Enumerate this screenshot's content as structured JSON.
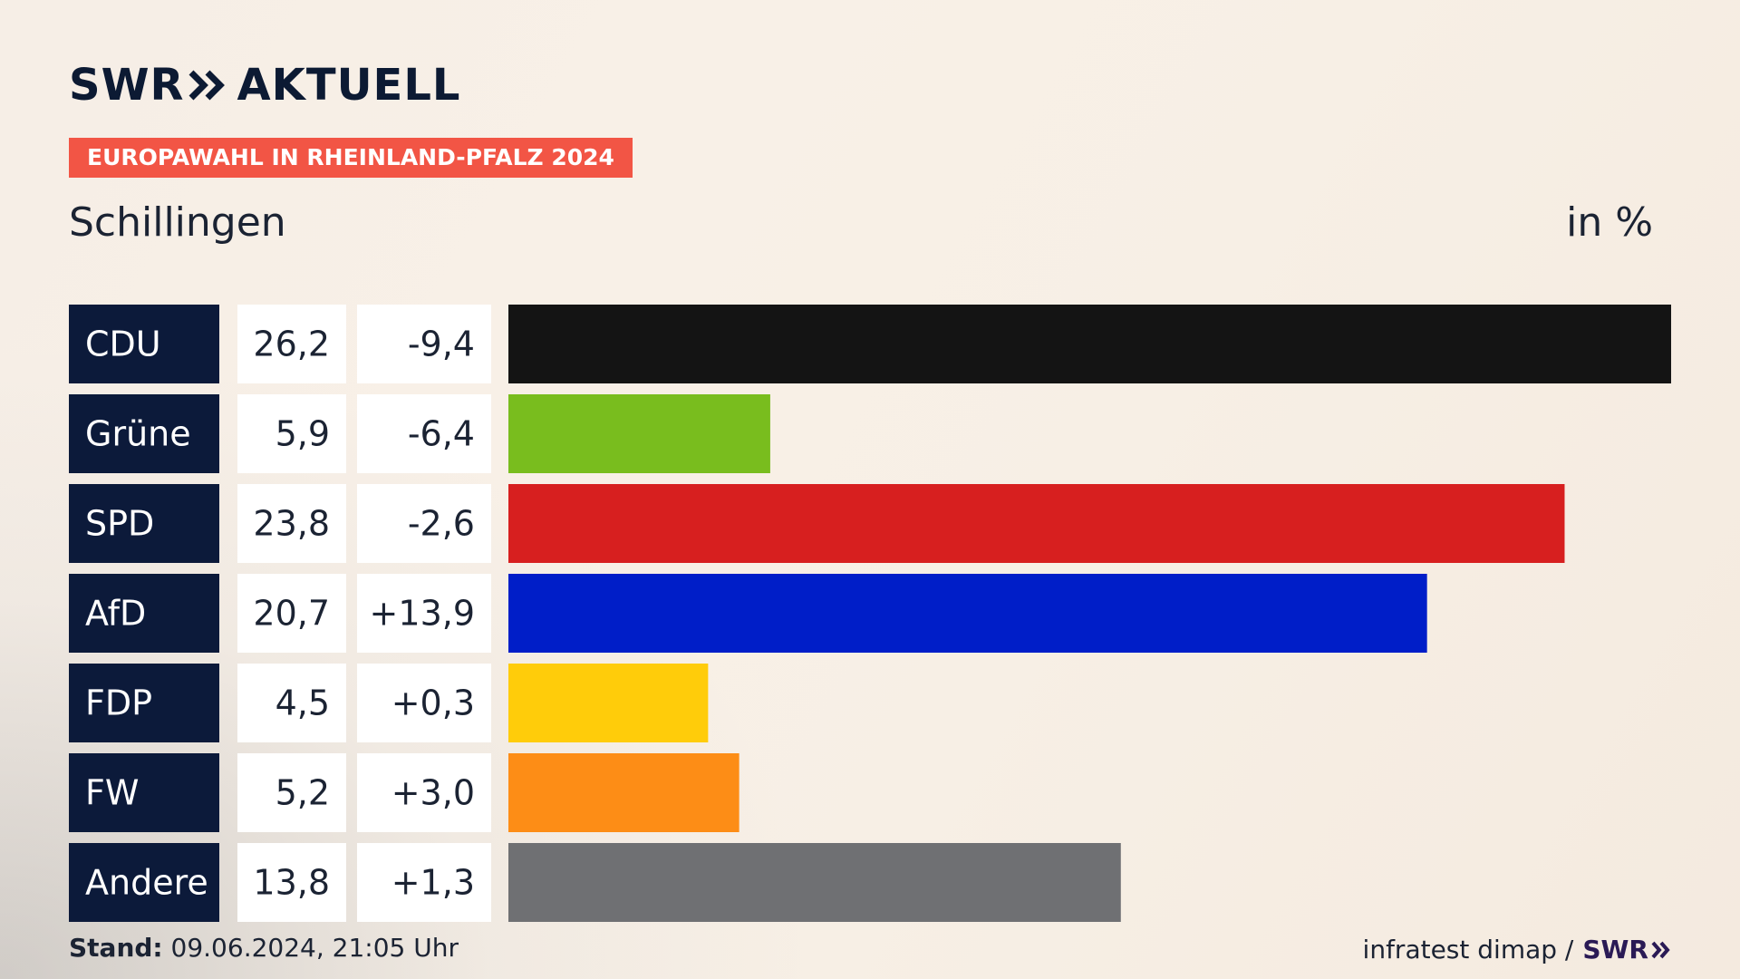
{
  "brand": {
    "name_left": "SWR",
    "name_right": "AKTUELL",
    "color": "#0c1a33"
  },
  "badge": {
    "text": "EUROPAWAHL IN RHEINLAND-PFALZ 2024",
    "color": "#f25545"
  },
  "header": {
    "place": "Schillingen",
    "unit": "in %"
  },
  "footer": {
    "stand_label": "Stand:",
    "stand_value": "09.06.2024, 21:05 Uhr",
    "source": "infratest dimap /",
    "source_logo": "SWR"
  },
  "chart_data": {
    "type": "bar",
    "orientation": "horizontal",
    "title": "Schillingen",
    "subtitle": "EUROPAWAHL IN RHEINLAND-PFALZ 2024",
    "unit": "in %",
    "categories": [
      "CDU",
      "Grüne",
      "SPD",
      "AfD",
      "FDP",
      "FW",
      "Andere"
    ],
    "values": [
      26.2,
      5.9,
      23.8,
      20.7,
      4.5,
      5.2,
      13.8
    ],
    "value_labels": [
      "26,2",
      "5,9",
      "23,8",
      "20,7",
      "4,5",
      "5,2",
      "13,8"
    ],
    "changes": [
      -9.4,
      -6.4,
      -2.6,
      13.9,
      0.3,
      3.0,
      1.3
    ],
    "change_labels": [
      "-9,4",
      "-6,4",
      "-2,6",
      "+13,9",
      "+0,3",
      "+3,0",
      "+1,3"
    ],
    "colors": [
      "#141414",
      "#79bd1e",
      "#d71f1f",
      "#001ec8",
      "#ffcc0a",
      "#fd8d16",
      "#6f7073"
    ],
    "xlim": [
      0,
      26.2
    ]
  }
}
